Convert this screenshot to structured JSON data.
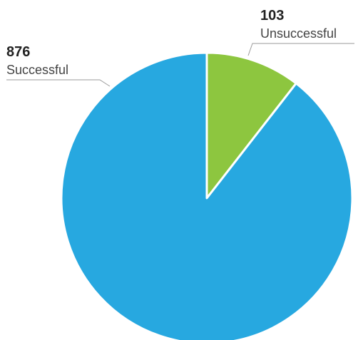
{
  "chart_data": {
    "type": "pie",
    "slices": [
      {
        "label": "Unsuccessful",
        "value": 103,
        "value_label": "103",
        "color": "#8DC63F"
      },
      {
        "label": "Successful",
        "value": 876,
        "value_label": "876",
        "color": "#27A8E0"
      }
    ],
    "start_angle": "12 o'clock",
    "direction": "clockwise",
    "legend": "none",
    "label_style": "callout lines"
  }
}
